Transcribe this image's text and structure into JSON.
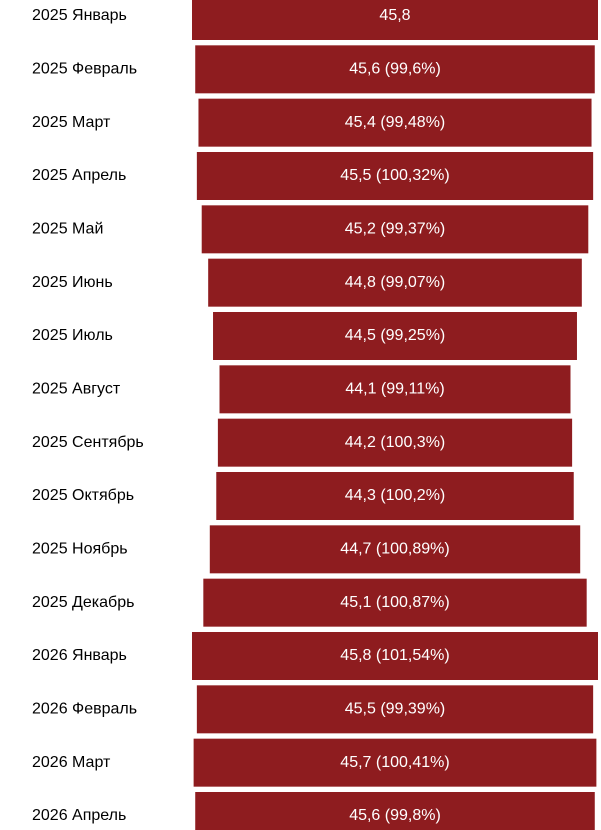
{
  "chart_data": {
    "type": "funnel",
    "color": "#8e1c1f",
    "categories": [
      "2025 Январь",
      "2025 Февраль",
      "2025 Март",
      "2025 Апрель",
      "2025 Май",
      "2025 Июнь",
      "2025 Июль",
      "2025 Август",
      "2025 Сентябрь",
      "2025 Октябрь",
      "2025 Ноябрь",
      "2025 Декабрь",
      "2026 Январь",
      "2026 Февраль",
      "2026 Март",
      "2026 Апрель"
    ],
    "values": [
      45.8,
      45.6,
      45.4,
      45.5,
      45.2,
      44.8,
      44.5,
      44.1,
      44.2,
      44.3,
      44.7,
      45.1,
      45.8,
      45.5,
      45.7,
      45.6
    ],
    "value_labels": [
      "45,8",
      "45,6 (99,6%)",
      "45,4 (99,48%)",
      "45,5 (100,32%)",
      "45,2 (99,37%)",
      "44,8 (99,07%)",
      "44,5 (99,25%)",
      "44,1 (99,11%)",
      "44,2 (100,3%)",
      "44,3 (100,2%)",
      "44,7 (100,89%)",
      "45,1 (100,87%)",
      "45,8 (101,54%)",
      "45,5 (99,39%)",
      "45,7 (100,41%)",
      "45,6 (99,8%)"
    ]
  }
}
